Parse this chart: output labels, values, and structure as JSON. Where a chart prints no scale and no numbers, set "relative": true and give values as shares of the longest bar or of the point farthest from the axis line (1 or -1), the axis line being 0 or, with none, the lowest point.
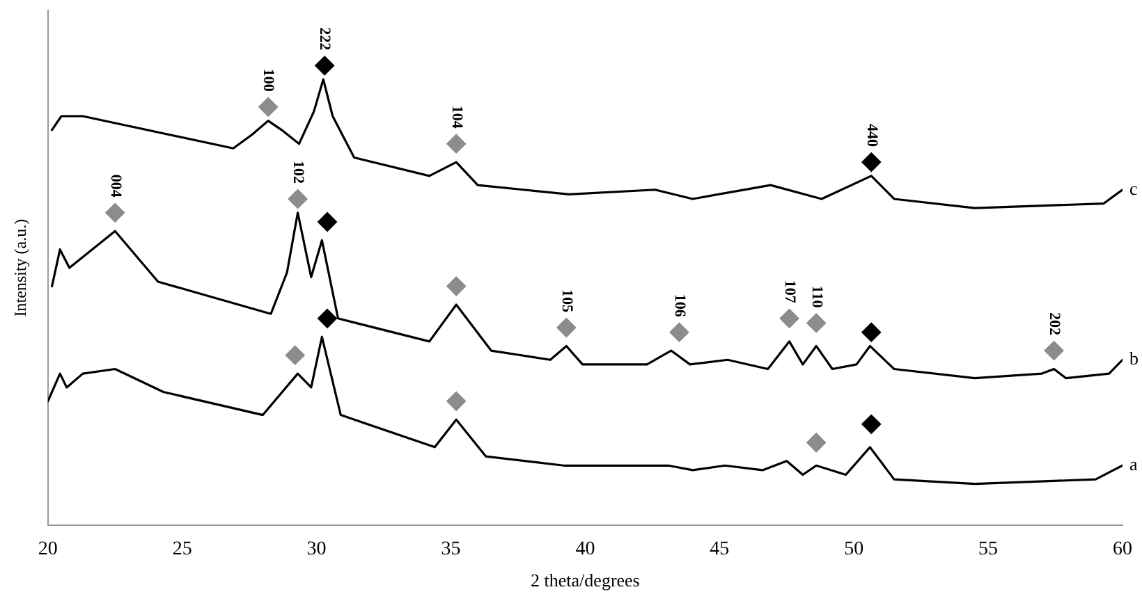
{
  "chart_data": {
    "type": "line",
    "relative": true,
    "xlabel": "2 theta/degrees",
    "ylabel": "Intensity (a.u.)",
    "xlim": [
      20,
      60
    ],
    "xticks": [
      20,
      25,
      30,
      35,
      40,
      45,
      50,
      55,
      60
    ],
    "grid": false,
    "legend": false,
    "marker": "none",
    "line_style": "solid",
    "series": [
      {
        "name": "a",
        "color": "#000000",
        "x": [
          20.0,
          20.45,
          20.7,
          21.3,
          22.5,
          24.3,
          28.0,
          29.3,
          29.8,
          30.2,
          30.9,
          34.4,
          35.2,
          36.3,
          39.2,
          39.9,
          43.1,
          44.0,
          45.2,
          46.6,
          47.5,
          48.1,
          48.6,
          49.7,
          50.6,
          51.5,
          54.5,
          59.0,
          60.0
        ],
        "values": [
          0.27,
          0.33,
          0.3,
          0.33,
          0.34,
          0.29,
          0.24,
          0.33,
          0.3,
          0.41,
          0.24,
          0.17,
          0.23,
          0.15,
          0.13,
          0.13,
          0.13,
          0.12,
          0.13,
          0.12,
          0.14,
          0.11,
          0.13,
          0.11,
          0.17,
          0.1,
          0.09,
          0.1,
          0.13
        ]
      },
      {
        "name": "b",
        "color": "#000000",
        "x": [
          20.15,
          20.45,
          20.8,
          22.5,
          24.1,
          28.3,
          28.9,
          29.3,
          29.8,
          30.2,
          30.8,
          34.2,
          35.2,
          36.5,
          38.7,
          39.3,
          39.9,
          42.3,
          43.2,
          43.9,
          45.3,
          46.8,
          47.6,
          48.1,
          48.6,
          49.2,
          50.1,
          50.6,
          51.5,
          54.5,
          57.0,
          57.45,
          57.9,
          59.5,
          60.0
        ],
        "values": [
          0.52,
          0.6,
          0.56,
          0.64,
          0.53,
          0.46,
          0.55,
          0.68,
          0.54,
          0.62,
          0.45,
          0.4,
          0.48,
          0.38,
          0.36,
          0.39,
          0.35,
          0.35,
          0.38,
          0.35,
          0.36,
          0.34,
          0.4,
          0.35,
          0.39,
          0.34,
          0.35,
          0.39,
          0.34,
          0.32,
          0.33,
          0.34,
          0.32,
          0.33,
          0.36
        ]
      },
      {
        "name": "c",
        "color": "#000000",
        "x": [
          20.15,
          20.5,
          21.3,
          26.9,
          27.6,
          28.2,
          28.7,
          29.35,
          29.9,
          30.25,
          30.6,
          31.4,
          34.2,
          35.2,
          36.0,
          39.4,
          42.6,
          44.0,
          46.9,
          48.8,
          50.65,
          51.5,
          54.5,
          59.3,
          60.0
        ],
        "values": [
          0.86,
          0.89,
          0.89,
          0.82,
          0.85,
          0.88,
          0.86,
          0.83,
          0.9,
          0.97,
          0.89,
          0.8,
          0.76,
          0.79,
          0.74,
          0.72,
          0.73,
          0.71,
          0.74,
          0.71,
          0.76,
          0.71,
          0.69,
          0.7,
          0.73
        ]
      },
      {
        "type": "scatter",
        "marker": "diamond",
        "color": "#8c8c8c",
        "x": [
          28.2,
          35.2,
          22.5,
          29.3,
          35.2,
          39.3,
          43.5,
          47.6,
          48.6,
          57.45,
          29.2,
          35.2,
          48.6
        ],
        "values": [
          0.91,
          0.83,
          0.68,
          0.71,
          0.52,
          0.43,
          0.42,
          0.45,
          0.44,
          0.38,
          0.37,
          0.27,
          0.18
        ]
      },
      {
        "type": "scatter",
        "marker": "diamond",
        "color": "#000000",
        "x": [
          30.3,
          30.4,
          30.4,
          50.65,
          50.65,
          50.65
        ],
        "values": [
          1.0,
          0.66,
          0.45,
          0.79,
          0.42,
          0.22
        ]
      }
    ],
    "annotations": [
      {
        "text": "100",
        "x": 28.2,
        "y": 0.91
      },
      {
        "text": "222",
        "x": 30.3,
        "y": 1.0
      },
      {
        "text": "104",
        "x": 35.2,
        "y": 0.83
      },
      {
        "text": "440",
        "x": 50.65,
        "y": 0.79
      },
      {
        "text": "004",
        "x": 22.5,
        "y": 0.68
      },
      {
        "text": "102",
        "x": 29.3,
        "y": 0.71
      },
      {
        "text": "105",
        "x": 39.3,
        "y": 0.43
      },
      {
        "text": "106",
        "x": 43.5,
        "y": 0.42
      },
      {
        "text": "107",
        "x": 47.6,
        "y": 0.45
      },
      {
        "text": "110",
        "x": 48.6,
        "y": 0.44
      },
      {
        "text": "202",
        "x": 57.45,
        "y": 0.38
      }
    ]
  }
}
